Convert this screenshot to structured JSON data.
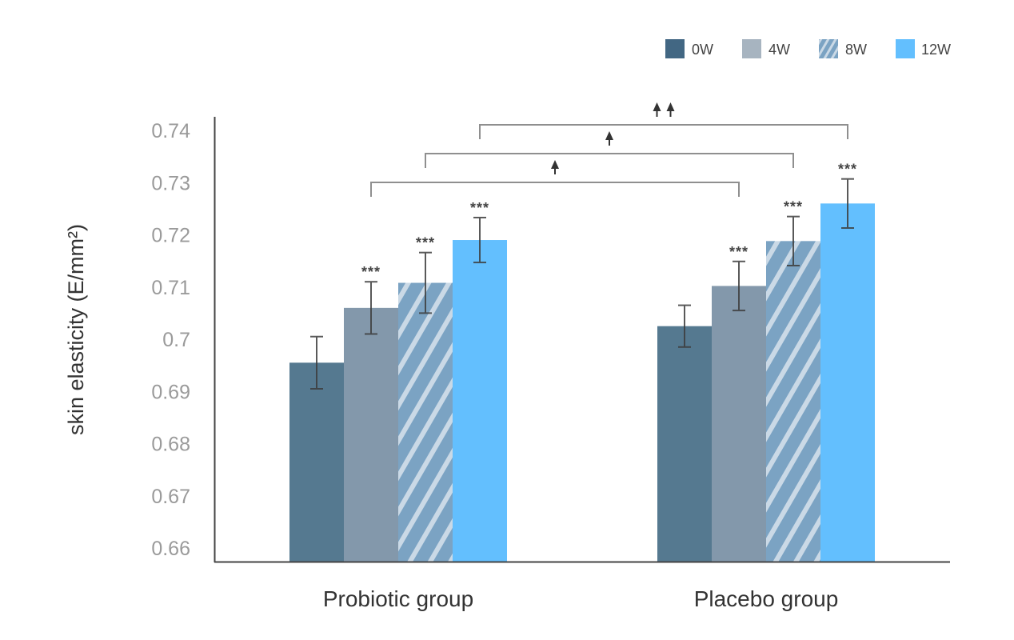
{
  "chart_data": {
    "type": "bar",
    "title": "",
    "xlabel": "",
    "ylabel": "skin elasticity (E/mm²)",
    "ylim": [
      0.6575,
      0.7425
    ],
    "yticks": [
      0.66,
      0.67,
      0.68,
      0.69,
      0.7,
      0.71,
      0.72,
      0.73,
      0.74
    ],
    "ytick_labels": [
      "0.66",
      "0.67",
      "0.68",
      "0.69",
      "0.7",
      "0.71",
      "0.72",
      "0.73",
      "0.74"
    ],
    "grid": false,
    "legend_position": "top-right",
    "categories": [
      "Probiotic group",
      "Placebo group"
    ],
    "series": [
      {
        "name": "0W",
        "color": "#557990",
        "legend_color": "#426783",
        "pattern": "solid",
        "values": [
          0.6955,
          0.7025
        ],
        "errors": [
          0.005,
          0.004
        ],
        "significance": [
          "",
          ""
        ]
      },
      {
        "name": "4W",
        "color": "#8398AB",
        "legend_color": "#A7B4C0",
        "pattern": "solid",
        "values": [
          0.706,
          0.7102
        ],
        "errors": [
          0.005,
          0.0047
        ],
        "significance": [
          "***",
          "***"
        ]
      },
      {
        "name": "8W",
        "color": "#7BA3C3",
        "stripe_color": "#CAD9E6",
        "legend_color": "#7BA3C3",
        "pattern": "hatched",
        "values": [
          0.7108,
          0.7188
        ],
        "errors": [
          0.0058,
          0.0047
        ],
        "significance": [
          "***",
          "***"
        ]
      },
      {
        "name": "12W",
        "color": "#63BFFE",
        "legend_color": "#63BFFE",
        "pattern": "solid",
        "values": [
          0.719,
          0.726
        ],
        "errors": [
          0.0043,
          0.0047
        ],
        "significance": [
          "***",
          "***"
        ]
      }
    ],
    "comparisons": [
      {
        "from": {
          "category": 0,
          "series": "4W"
        },
        "to": {
          "category": 1,
          "series": "4W"
        },
        "label": "↑",
        "arrows": 1
      },
      {
        "from": {
          "category": 0,
          "series": "8W"
        },
        "to": {
          "category": 1,
          "series": "8W"
        },
        "label": "↑",
        "arrows": 1
      },
      {
        "from": {
          "category": 0,
          "series": "12W"
        },
        "to": {
          "category": 1,
          "series": "12W"
        },
        "label": "↑↑",
        "arrows": 2
      }
    ]
  }
}
